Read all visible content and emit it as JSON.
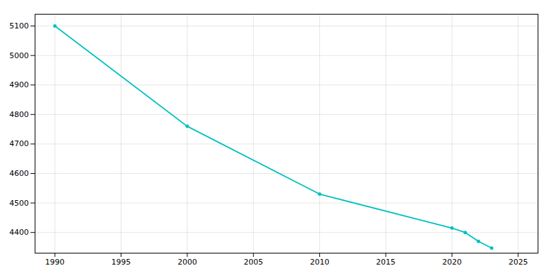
{
  "chart_data": {
    "type": "line",
    "x": [
      1990,
      2000,
      2010,
      2020,
      2021,
      2022,
      2023
    ],
    "values": [
      5100,
      4760,
      4530,
      4415,
      4400,
      4370,
      4347
    ],
    "color": "#00C0C0",
    "marker": "circle",
    "xlim": [
      1988.5,
      2026.5
    ],
    "ylim": [
      4330,
      5140
    ],
    "xticks": [
      1990,
      1995,
      2000,
      2005,
      2010,
      2015,
      2020,
      2025
    ],
    "yticks": [
      4400,
      4500,
      4600,
      4700,
      4800,
      4900,
      5000,
      5100
    ],
    "grid": true
  }
}
